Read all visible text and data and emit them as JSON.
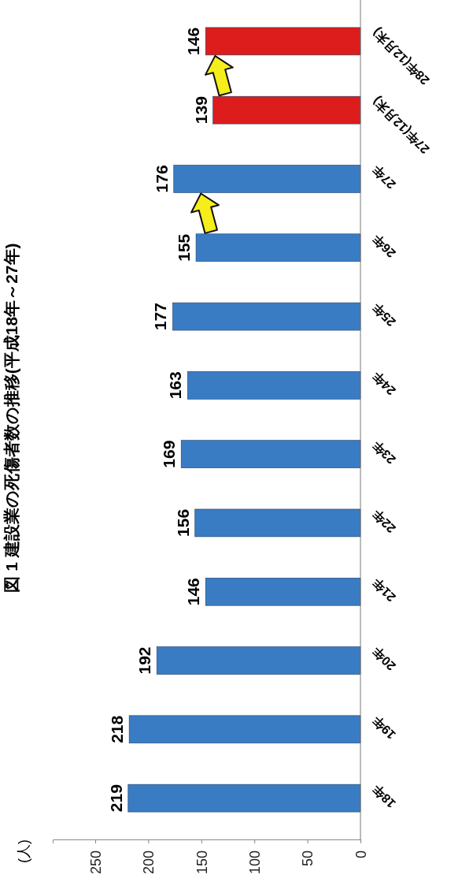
{
  "chart_data": {
    "type": "bar",
    "orientation": "horizontal",
    "title": "図 1  建設業の死傷者数の推移(平成18年～27年)",
    "annotations": [
      "(人)"
    ],
    "categories": [
      "28年(12月末)",
      "27年(12月末)",
      "27年",
      "26年",
      "25年",
      "24年",
      "23年",
      "22年",
      "21年",
      "20年",
      "19年",
      "18年"
    ],
    "values": [
      146,
      139,
      176,
      155,
      177,
      163,
      169,
      156,
      146,
      192,
      218,
      219
    ],
    "colors": [
      "#dd1c1c",
      "#dd1c1c",
      "#3a7cc4",
      "#3a7cc4",
      "#3a7cc4",
      "#3a7cc4",
      "#3a7cc4",
      "#3a7cc4",
      "#3a7cc4",
      "#3a7cc4",
      "#3a7cc4",
      "#3a7cc4"
    ],
    "xlim": [
      290,
      0
    ],
    "xticks": [
      250,
      200,
      150,
      100,
      50,
      0
    ],
    "data_labels": true
  }
}
